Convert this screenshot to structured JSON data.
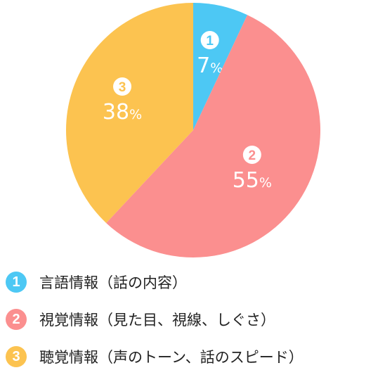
{
  "chart_data": {
    "type": "pie",
    "title": "",
    "slices": [
      {
        "number": "1",
        "value": 7,
        "label": "7%",
        "legend": "言語情報（話の内容）",
        "color": "#4dc8f4"
      },
      {
        "number": "2",
        "value": 55,
        "label": "55%",
        "legend": "視覚情報（見た目、視線、しぐさ）",
        "color": "#fb8f8f"
      },
      {
        "number": "3",
        "value": 38,
        "label": "38%",
        "legend": "聴覚情報（声のトーン、話のスピード）",
        "color": "#fcc350"
      }
    ],
    "start": "top",
    "direction": "clockwise",
    "legend_position": "bottom"
  }
}
